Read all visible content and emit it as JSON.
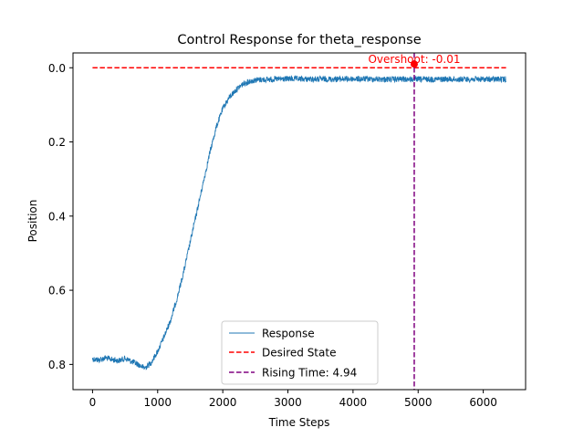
{
  "chart_data": {
    "type": "line",
    "title": "Control Response for theta_response",
    "xlabel": "Time Steps",
    "ylabel": "Position",
    "xlim": [
      -300,
      6650
    ],
    "ylim": [
      0.868,
      -0.04
    ],
    "y_inverted": true,
    "x_ticks": [
      0,
      1000,
      2000,
      3000,
      4000,
      5000,
      6000
    ],
    "y_ticks": [
      0.0,
      0.2,
      0.4,
      0.6,
      0.8
    ],
    "x_tick_labels": [
      "0",
      "1000",
      "2000",
      "3000",
      "4000",
      "5000",
      "6000"
    ],
    "y_tick_labels": [
      "0.0",
      "0.2",
      "0.4",
      "0.6",
      "0.8"
    ],
    "grid": false,
    "legend_position": "lower-center",
    "series": [
      {
        "name": "Response",
        "style": "solid",
        "color": "#1f77b4",
        "x": [
          0,
          100,
          200,
          300,
          400,
          500,
          600,
          700,
          800,
          900,
          1000,
          1100,
          1200,
          1300,
          1400,
          1500,
          1600,
          1700,
          1800,
          1900,
          2000,
          2100,
          2200,
          2300,
          2400,
          2500,
          2600,
          2800,
          3000,
          3500,
          4000,
          4500,
          5000,
          5500,
          6000,
          6350
        ],
        "y": [
          0.785,
          0.788,
          0.782,
          0.787,
          0.79,
          0.784,
          0.792,
          0.8,
          0.81,
          0.795,
          0.765,
          0.725,
          0.68,
          0.62,
          0.55,
          0.47,
          0.39,
          0.31,
          0.23,
          0.16,
          0.11,
          0.08,
          0.06,
          0.045,
          0.037,
          0.033,
          0.032,
          0.031,
          0.03,
          0.031,
          0.03,
          0.031,
          0.031,
          0.031,
          0.031,
          0.031
        ],
        "noise": 0.008
      },
      {
        "name": "Desired State",
        "style": "dashed",
        "color": "#ff0000",
        "x": [
          0,
          6350
        ],
        "y": [
          0.0,
          0.0
        ]
      },
      {
        "name": "Rising Time: 4.94",
        "style": "dashed",
        "color": "#800080",
        "orientation": "vertical",
        "x_value": 4940
      }
    ],
    "annotations": [
      {
        "text": "Overshoot: -0.01",
        "color": "#ff0000",
        "x": 4940,
        "y": -0.01,
        "marker": "circle"
      }
    ]
  },
  "colors": {
    "response": "#1f77b4",
    "desired": "#ff0000",
    "rising": "#800080"
  }
}
